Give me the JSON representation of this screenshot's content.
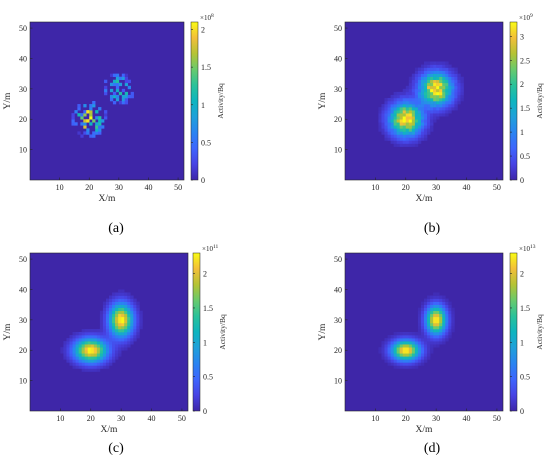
{
  "figure": {
    "colormap": "parula",
    "background_color": "#3e26a8"
  },
  "chart_data": [
    {
      "id": "a",
      "type": "heatmap",
      "caption": "(a)",
      "xlabel": "X/m",
      "ylabel": "Y/m",
      "xlim": [
        0,
        52
      ],
      "ylim": [
        0,
        52
      ],
      "xticks": [
        10,
        20,
        30,
        40,
        50
      ],
      "yticks": [
        10,
        20,
        30,
        40,
        50
      ],
      "colorbar": {
        "label": "Activity/Bq",
        "min": 0,
        "max": 2.1,
        "ticks": [
          0,
          0.5,
          1,
          1.5,
          2
        ],
        "tick_labels": [
          "0",
          "0.5",
          "1",
          "1.5",
          "2"
        ],
        "exponent_base": "×10",
        "exponent": "8"
      },
      "sources": [
        {
          "x": 20,
          "y": 20,
          "peak": 2.1,
          "sigma": 3.0
        },
        {
          "x": 30,
          "y": 30,
          "peak": 1.3,
          "sigma": 3.0
        }
      ],
      "noise": "sparse",
      "grid": false
    },
    {
      "id": "b",
      "type": "heatmap",
      "caption": "(b)",
      "xlabel": "X/m",
      "ylabel": "Y/m",
      "xlim": [
        0,
        52
      ],
      "ylim": [
        0,
        52
      ],
      "xticks": [
        10,
        20,
        30,
        40,
        50
      ],
      "yticks": [
        10,
        20,
        30,
        40,
        50
      ],
      "colorbar": {
        "label": "Activity/Bq",
        "min": 0,
        "max": 3.3,
        "ticks": [
          0,
          0.5,
          1,
          1.5,
          2,
          2.5,
          3
        ],
        "tick_labels": [
          "0",
          "0.5",
          "1",
          "1.5",
          "2",
          "2.5",
          "3"
        ],
        "exponent_base": "×10",
        "exponent": "9"
      },
      "sources": [
        {
          "x": 20,
          "y": 20,
          "peak": 3.3,
          "sigma": 3.5
        },
        {
          "x": 30,
          "y": 30,
          "peak": 3.3,
          "sigma": 3.5
        }
      ],
      "noise": "medium",
      "grid": false
    },
    {
      "id": "c",
      "type": "heatmap",
      "caption": "(c)",
      "xlabel": "X/m",
      "ylabel": "Y/m",
      "xlim": [
        0,
        52
      ],
      "ylim": [
        0,
        52
      ],
      "xticks": [
        10,
        20,
        30,
        40,
        50
      ],
      "yticks": [
        10,
        20,
        30,
        40,
        50
      ],
      "colorbar": {
        "label": "Activity/Bq",
        "min": 0,
        "max": 2.3,
        "ticks": [
          0,
          0.5,
          1,
          1.5,
          2
        ],
        "tick_labels": [
          "0",
          "0.5",
          "1",
          "1.5",
          "2"
        ],
        "exponent_base": "×10",
        "exponent": "11"
      },
      "sources": [
        {
          "x": 20,
          "y": 20,
          "peak": 2.3,
          "sigma_x": 3.6,
          "sigma_y": 2.6
        },
        {
          "x": 30,
          "y": 30,
          "peak": 2.3,
          "sigma_x": 2.6,
          "sigma_y": 3.6
        }
      ],
      "noise": "light",
      "grid": false
    },
    {
      "id": "d",
      "type": "heatmap",
      "caption": "(d)",
      "xlabel": "X/m",
      "ylabel": "Y/m",
      "xlim": [
        0,
        52
      ],
      "ylim": [
        0,
        52
      ],
      "xticks": [
        10,
        20,
        30,
        40,
        50
      ],
      "yticks": [
        10,
        20,
        30,
        40,
        50
      ],
      "colorbar": {
        "label": "Activity/Bq",
        "min": 0,
        "max": 2.3,
        "ticks": [
          0,
          0.5,
          1,
          1.5,
          2
        ],
        "tick_labels": [
          "0",
          "0.5",
          "1",
          "1.5",
          "2"
        ],
        "exponent_base": "×10",
        "exponent": "13"
      },
      "sources": [
        {
          "x": 20,
          "y": 20,
          "peak": 2.3,
          "sigma_x": 3.1,
          "sigma_y": 2.2
        },
        {
          "x": 30,
          "y": 30,
          "peak": 2.3,
          "sigma_x": 2.2,
          "sigma_y": 3.1
        }
      ],
      "noise": "none",
      "grid": false
    }
  ]
}
